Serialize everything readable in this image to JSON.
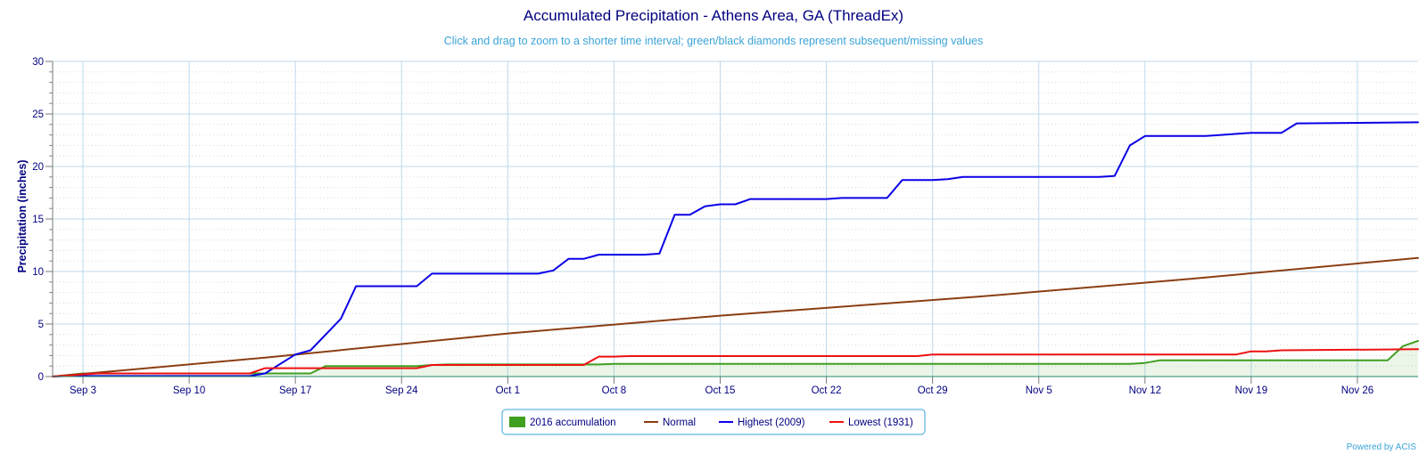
{
  "chart_data": {
    "type": "line",
    "title": "Accumulated Precipitation - Athens Area, GA (ThreadEx)",
    "subtitle": "Click and drag to zoom to a shorter time interval; green/black diamonds represent subsequent/missing values",
    "ylabel": "Precipitation (inches)",
    "xlabel": "",
    "ylim": [
      0,
      30
    ],
    "yticks": [
      0,
      5,
      10,
      15,
      20,
      25,
      30
    ],
    "x_start": "2016-09-01",
    "x_end": "2016-11-30",
    "x_ticks": [
      {
        "label": "Sep 3",
        "date": "2016-09-03"
      },
      {
        "label": "Sep 10",
        "date": "2016-09-10"
      },
      {
        "label": "Sep 17",
        "date": "2016-09-17"
      },
      {
        "label": "Sep 24",
        "date": "2016-09-24"
      },
      {
        "label": "Oct 1",
        "date": "2016-10-01"
      },
      {
        "label": "Oct 8",
        "date": "2016-10-08"
      },
      {
        "label": "Oct 15",
        "date": "2016-10-15"
      },
      {
        "label": "Oct 22",
        "date": "2016-10-22"
      },
      {
        "label": "Oct 29",
        "date": "2016-10-29"
      },
      {
        "label": "Nov 5",
        "date": "2016-11-05"
      },
      {
        "label": "Nov 12",
        "date": "2016-11-12"
      },
      {
        "label": "Nov 19",
        "date": "2016-11-19"
      },
      {
        "label": "Nov 26",
        "date": "2016-11-26"
      }
    ],
    "grid": true,
    "legend_position": "bottom-center",
    "series": [
      {
        "name": "2016 accumulation",
        "style": "area",
        "color": "#3f9f1f",
        "points": [
          [
            "2016-09-01",
            0.0
          ],
          [
            "2016-09-02",
            0.15
          ],
          [
            "2016-09-03",
            0.3
          ],
          [
            "2016-09-04",
            0.3
          ],
          [
            "2016-09-16",
            0.3
          ],
          [
            "2016-09-17",
            0.3
          ],
          [
            "2016-09-18",
            0.3
          ],
          [
            "2016-09-19",
            1.0
          ],
          [
            "2016-09-25",
            1.0
          ],
          [
            "2016-09-26",
            1.1
          ],
          [
            "2016-09-27",
            1.15
          ],
          [
            "2016-10-07",
            1.15
          ],
          [
            "2016-10-08",
            1.2
          ],
          [
            "2016-10-15",
            1.2
          ],
          [
            "2016-11-11",
            1.2
          ],
          [
            "2016-11-12",
            1.3
          ],
          [
            "2016-11-13",
            1.55
          ],
          [
            "2016-11-28",
            1.55
          ],
          [
            "2016-11-29",
            2.9
          ],
          [
            "2016-11-30",
            3.4
          ]
        ]
      },
      {
        "name": "Normal",
        "style": "line",
        "color": "#8b3e13",
        "points": [
          [
            "2016-09-01",
            0.0
          ],
          [
            "2016-09-15",
            1.8
          ],
          [
            "2016-10-01",
            4.1
          ],
          [
            "2016-10-15",
            5.8
          ],
          [
            "2016-11-01",
            7.6
          ],
          [
            "2016-11-15",
            9.3
          ],
          [
            "2016-11-30",
            11.3
          ]
        ]
      },
      {
        "name": "Highest (2009)",
        "style": "line",
        "color": "#0a00e6",
        "points": [
          [
            "2016-09-01",
            0.0
          ],
          [
            "2016-09-02",
            0.05
          ],
          [
            "2016-09-14",
            0.05
          ],
          [
            "2016-09-15",
            0.3
          ],
          [
            "2016-09-17",
            2.1
          ],
          [
            "2016-09-18",
            2.5
          ],
          [
            "2016-09-20",
            5.5
          ],
          [
            "2016-09-21",
            8.6
          ],
          [
            "2016-09-25",
            8.6
          ],
          [
            "2016-09-26",
            9.8
          ],
          [
            "2016-10-03",
            9.8
          ],
          [
            "2016-10-04",
            10.1
          ],
          [
            "2016-10-05",
            11.2
          ],
          [
            "2016-10-06",
            11.2
          ],
          [
            "2016-10-07",
            11.6
          ],
          [
            "2016-10-10",
            11.6
          ],
          [
            "2016-10-11",
            11.7
          ],
          [
            "2016-10-12",
            15.4
          ],
          [
            "2016-10-13",
            15.4
          ],
          [
            "2016-10-14",
            16.2
          ],
          [
            "2016-10-15",
            16.4
          ],
          [
            "2016-10-16",
            16.4
          ],
          [
            "2016-10-17",
            16.9
          ],
          [
            "2016-10-22",
            16.9
          ],
          [
            "2016-10-23",
            17.0
          ],
          [
            "2016-10-26",
            17.0
          ],
          [
            "2016-10-27",
            18.7
          ],
          [
            "2016-10-29",
            18.7
          ],
          [
            "2016-10-30",
            18.8
          ],
          [
            "2016-10-31",
            19.0
          ],
          [
            "2016-11-09",
            19.0
          ],
          [
            "2016-11-10",
            19.1
          ],
          [
            "2016-11-11",
            22.0
          ],
          [
            "2016-11-12",
            22.9
          ],
          [
            "2016-11-16",
            22.9
          ],
          [
            "2016-11-17",
            23.0
          ],
          [
            "2016-11-18",
            23.1
          ],
          [
            "2016-11-19",
            23.2
          ],
          [
            "2016-11-21",
            23.2
          ],
          [
            "2016-11-22",
            24.1
          ],
          [
            "2016-11-30",
            24.2
          ]
        ]
      },
      {
        "name": "Lowest (1931)",
        "style": "line",
        "color": "#ee1111",
        "points": [
          [
            "2016-09-01",
            0.0
          ],
          [
            "2016-09-03",
            0.2
          ],
          [
            "2016-09-04",
            0.3
          ],
          [
            "2016-09-14",
            0.3
          ],
          [
            "2016-09-15",
            0.8
          ],
          [
            "2016-09-25",
            0.8
          ],
          [
            "2016-09-26",
            1.1
          ],
          [
            "2016-10-06",
            1.1
          ],
          [
            "2016-10-07",
            1.9
          ],
          [
            "2016-10-08",
            1.9
          ],
          [
            "2016-10-09",
            1.95
          ],
          [
            "2016-10-28",
            1.95
          ],
          [
            "2016-10-29",
            2.1
          ],
          [
            "2016-11-18",
            2.1
          ],
          [
            "2016-11-19",
            2.4
          ],
          [
            "2016-11-20",
            2.4
          ],
          [
            "2016-11-21",
            2.5
          ],
          [
            "2016-11-30",
            2.6
          ]
        ]
      }
    ]
  },
  "credit": "Powered by ACIS"
}
